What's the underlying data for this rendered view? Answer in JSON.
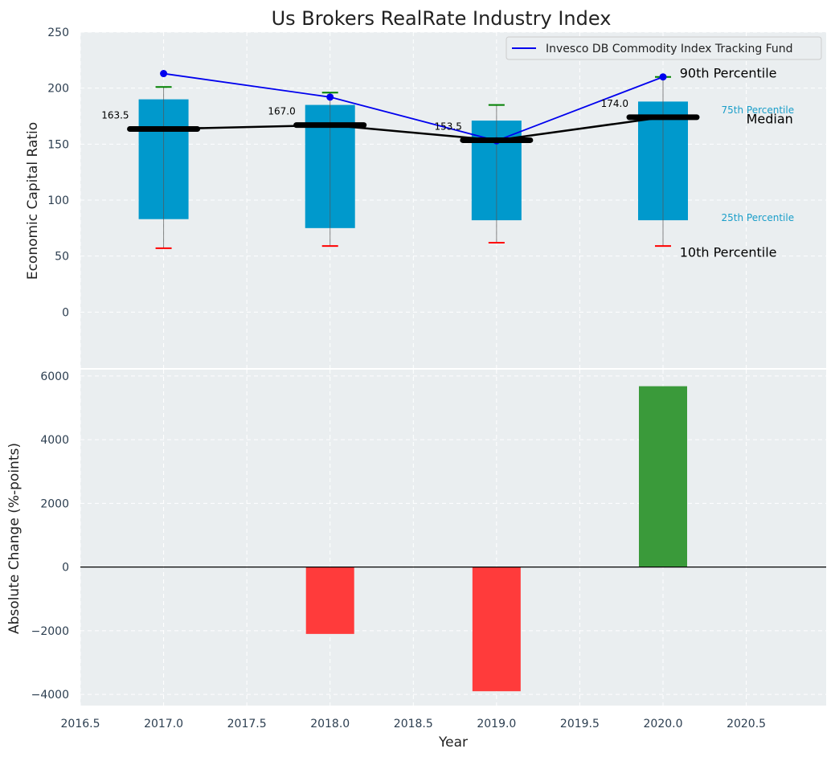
{
  "chart_data": [
    {
      "type": "box",
      "title": "Us Brokers RealRate Industry Index",
      "xlabel": "",
      "ylabel": "Economic Capital Ratio",
      "xlim": [
        2016.5,
        2020.98
      ],
      "ylim": [
        -50,
        250
      ],
      "yticks": [
        0,
        50,
        100,
        150,
        200,
        250
      ],
      "grid": true,
      "x": [
        2017,
        2018,
        2019,
        2020
      ],
      "p10": [
        57,
        59,
        62,
        59
      ],
      "p25": [
        83,
        75,
        82,
        82
      ],
      "median": [
        163.5,
        167.0,
        153.5,
        174.0
      ],
      "median_labels": [
        "163.5",
        "167.0",
        "153.5",
        "174.0"
      ],
      "p75": [
        190,
        185,
        171,
        188
      ],
      "p90": [
        201,
        196,
        185,
        210
      ],
      "series": [
        {
          "name": "Invesco DB Commodity Index Tracking Fund",
          "type": "line",
          "values": [
            213,
            192,
            153,
            210
          ]
        }
      ],
      "legend": "top-right",
      "annotations": [
        {
          "text": "90th Percentile",
          "x": 2020.1,
          "y": 213
        },
        {
          "text": "75th Percentile",
          "x": 2020.35,
          "y": 181
        },
        {
          "text": "Median",
          "x": 2020.5,
          "y": 172
        },
        {
          "text": "25th Percentile",
          "x": 2020.35,
          "y": 85
        },
        {
          "text": "10th Percentile",
          "x": 2020.1,
          "y": 53
        }
      ]
    },
    {
      "type": "bar",
      "title": "",
      "xlabel": "Year",
      "ylabel": "Absolute Change (%-points)",
      "xlim": [
        2016.5,
        2020.98
      ],
      "ylim": [
        -4350,
        6200
      ],
      "yticks": [
        -4000,
        -2000,
        0,
        2000,
        4000,
        6000
      ],
      "xticks": [
        2016.5,
        2017.0,
        2017.5,
        2018.0,
        2018.5,
        2019.0,
        2019.5,
        2020.0,
        2020.5
      ],
      "grid": true,
      "x": [
        2018,
        2019,
        2020
      ],
      "values": [
        -2100,
        -3900,
        5680
      ]
    }
  ],
  "colors": {
    "background": "#eaeef0",
    "box_fill": "#0099cc",
    "line": "#0000ee",
    "median": "#000000",
    "p90_cap": "#008000",
    "p10_cap": "#ff0000",
    "bar_negative": "#ff3b3b",
    "bar_positive": "#3a9a3a",
    "annotation_blue": "#1a9ec9"
  }
}
